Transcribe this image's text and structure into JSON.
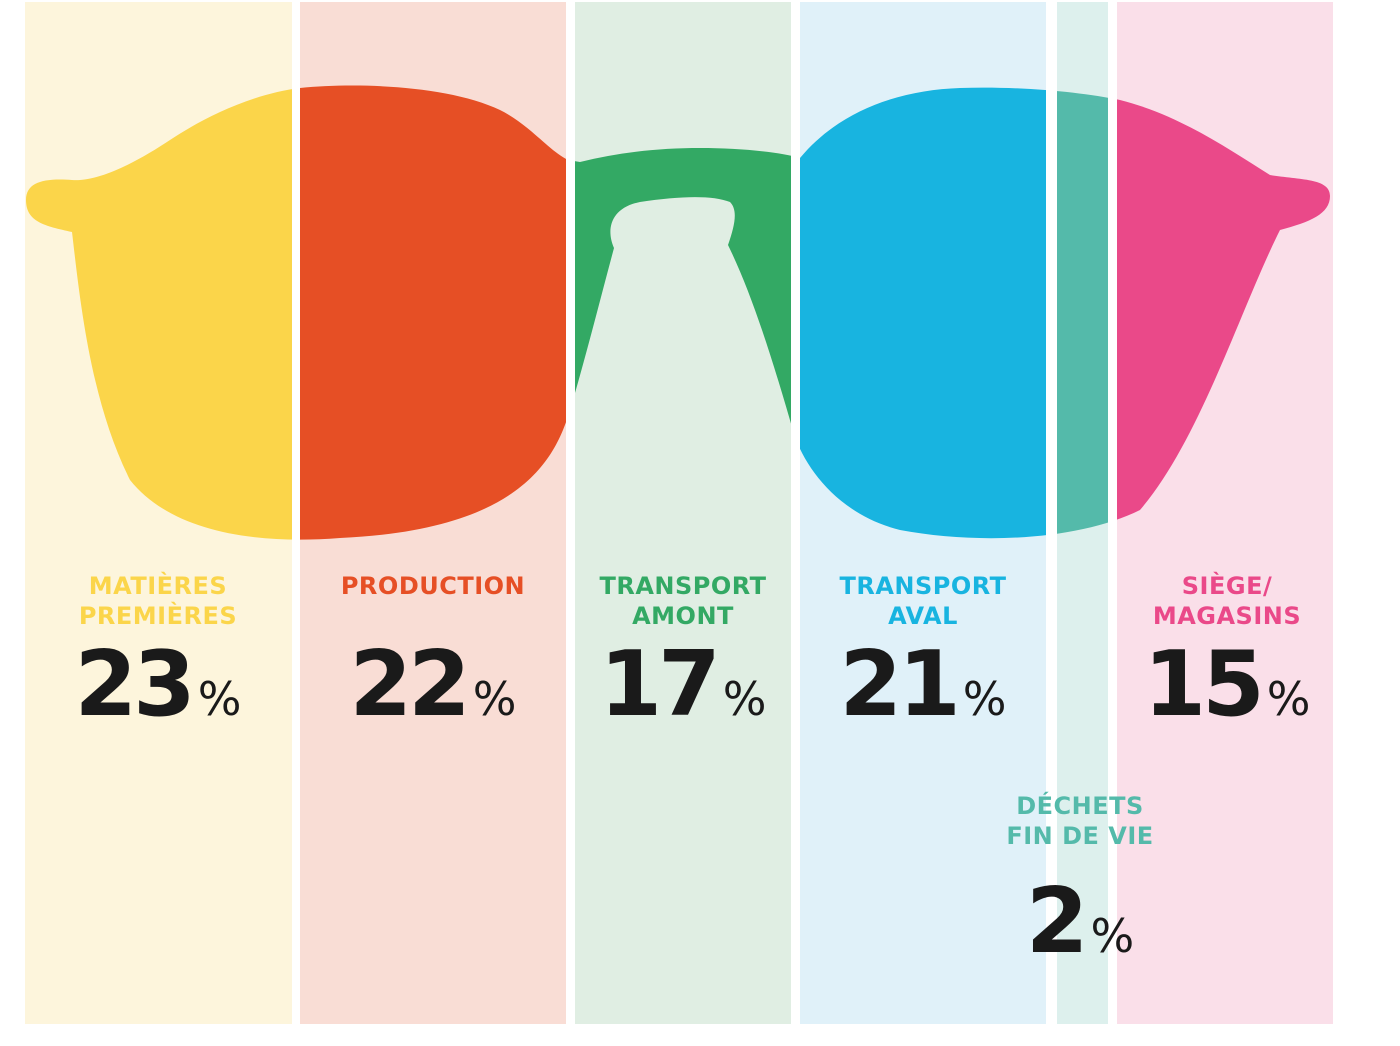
{
  "chart_data": {
    "type": "bar",
    "title": "",
    "unit": "%",
    "categories": [
      "MATIÈRES PREMIÈRES",
      "PRODUCTION",
      "TRANSPORT AMONT",
      "TRANSPORT AVAL",
      "DÉCHETS FIN DE VIE",
      "SIÈGE/ MAGASINS"
    ],
    "values": [
      23,
      22,
      17,
      21,
      2,
      15
    ],
    "series": [
      {
        "category": "MATIÈRES PREMIÈRES",
        "label_lines": [
          "MATIÈRES",
          "PREMIÈRES"
        ],
        "value": 23,
        "color": "#fbd54a",
        "bg": "#fdf5dc"
      },
      {
        "category": "PRODUCTION",
        "label_lines": [
          "PRODUCTION"
        ],
        "value": 22,
        "color": "#e64f25",
        "bg": "#f9ddd5"
      },
      {
        "category": "TRANSPORT AMONT",
        "label_lines": [
          "TRANSPORT",
          "AMONT"
        ],
        "value": 17,
        "color": "#33a964",
        "bg": "#e0eee3"
      },
      {
        "category": "TRANSPORT AVAL",
        "label_lines": [
          "TRANSPORT",
          "AVAL"
        ],
        "value": 21,
        "color": "#18b4e0",
        "bg": "#e0f1f9"
      },
      {
        "category": "DÉCHETS FIN DE VIE",
        "label_lines": [
          "DÉCHETS",
          "FIN DE VIE"
        ],
        "value": 2,
        "color": "#54baaa",
        "bg": "#ddf0ed"
      },
      {
        "category": "SIÈGE/ MAGASINS",
        "label_lines": [
          "SIÈGE/",
          "MAGASINS"
        ],
        "value": 15,
        "color": "#ea4989",
        "bg": "#fadfe9"
      }
    ]
  }
}
